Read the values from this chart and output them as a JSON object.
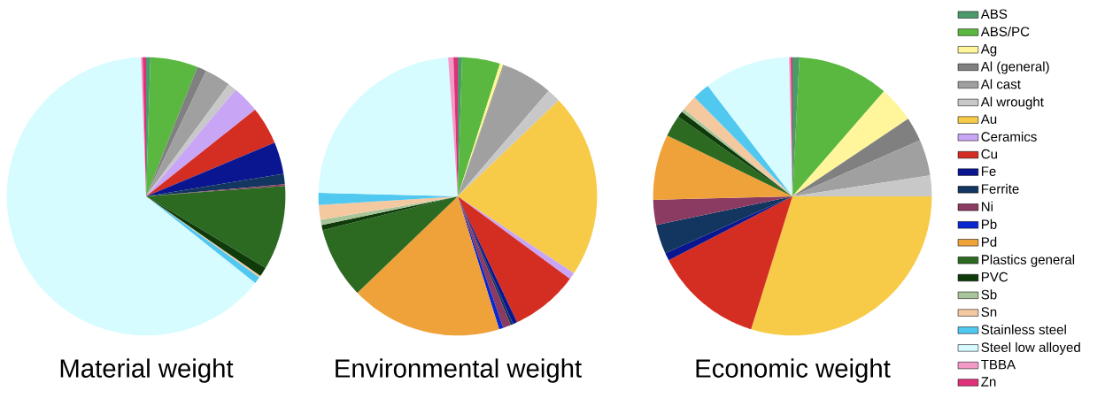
{
  "chart_data": [
    {
      "type": "pie",
      "title": "Material weight",
      "categories": [
        null,
        null,
        null,
        null,
        null,
        null,
        null,
        null,
        null,
        null,
        null,
        null,
        null,
        null,
        null,
        null,
        null,
        null,
        null,
        null,
        null,
        null
      ],
      "values": [
        0.5,
        5.5,
        0,
        1.1,
        3,
        1,
        0,
        3.2,
        4.4,
        3.7,
        1.2,
        0.2,
        0,
        0,
        9.8,
        1.1,
        0,
        0.2,
        0.8,
        63.7,
        0.2,
        0.4
      ],
      "colors": [
        "#4a9a6a",
        "#5ab840",
        "#fff59a",
        "#808080",
        "#a0a0a0",
        "#c8c8c8",
        "#f7cb47",
        "#c9a6f5",
        "#d42e22",
        "#0a1590",
        "#12365f",
        "#8b3a62",
        "#0a28d0",
        "#f0a23a",
        "#2c6a22",
        "#0f3a0a",
        "#a8c49a",
        "#f5c9a0",
        "#50c8f0",
        "#d6fcff",
        "#f49ac8",
        "#e0307a"
      ]
    },
    {
      "type": "pie",
      "title": "Environmental weight",
      "categories": [
        null,
        null,
        null,
        null,
        null,
        null,
        null,
        null,
        null,
        null,
        null,
        null,
        null,
        null,
        null,
        null,
        null,
        null,
        null,
        null,
        null,
        null
      ],
      "values": [
        0.5,
        4.4,
        0.4,
        0.1,
        5.9,
        1.6,
        21.4,
        0.8,
        7.9,
        0.5,
        0.3,
        0.9,
        0.5,
        17.6,
        8.3,
        0.6,
        0.6,
        1.7,
        1.4,
        23.5,
        0.6,
        0.5
      ],
      "colors": [
        "#4a9a6a",
        "#5ab840",
        "#fff59a",
        "#808080",
        "#a0a0a0",
        "#c8c8c8",
        "#f7cb47",
        "#c9a6f5",
        "#d42e22",
        "#0a1590",
        "#12365f",
        "#8b3a62",
        "#0a28d0",
        "#f0a23a",
        "#2c6a22",
        "#0f3a0a",
        "#a8c49a",
        "#f5c9a0",
        "#50c8f0",
        "#d6fcff",
        "#f49ac8",
        "#e0307a"
      ]
    },
    {
      "type": "pie",
      "title": "Economic weight",
      "legend": "right",
      "categories": [
        "ABS",
        "ABS/PC",
        "Ag",
        "Al (general)",
        "Al cast",
        "Al wrought",
        "Au",
        "Ceramics",
        "Cu",
        "Fe",
        "Ferrite",
        "Ni",
        "Pb",
        "Pd",
        "Plastics general",
        "PVC",
        "Sb",
        "Sn",
        "Stainless steel",
        "Steel low alloyed",
        "TBBA",
        "Zn"
      ],
      "values": [
        0.8,
        10.6,
        4.2,
        2.8,
        4.2,
        2.4,
        29.8,
        0,
        12.6,
        0.9,
        3.4,
        2.9,
        0,
        7.6,
        2.5,
        0.7,
        0.4,
        1.8,
        2,
        10,
        0.2,
        0.2
      ],
      "colors": [
        "#4a9a6a",
        "#5ab840",
        "#fff59a",
        "#808080",
        "#a0a0a0",
        "#c8c8c8",
        "#f7cb47",
        "#c9a6f5",
        "#d42e22",
        "#0a1590",
        "#12365f",
        "#8b3a62",
        "#0a28d0",
        "#f0a23a",
        "#2c6a22",
        "#0f3a0a",
        "#a8c49a",
        "#f5c9a0",
        "#50c8f0",
        "#d6fcff",
        "#f49ac8",
        "#e0307a"
      ]
    }
  ]
}
